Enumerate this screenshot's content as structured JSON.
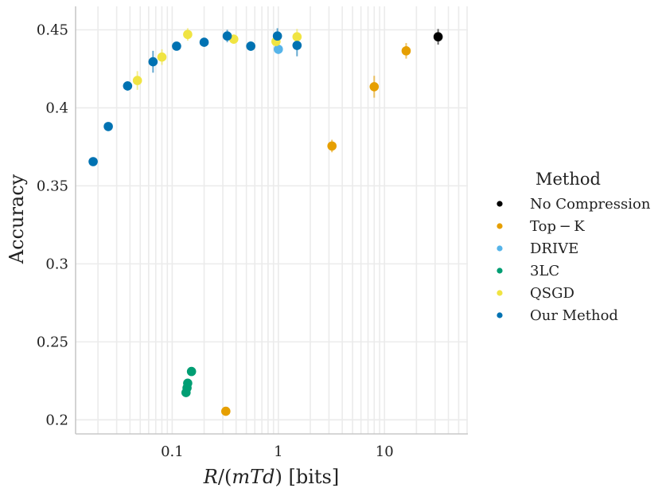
{
  "chart_data": {
    "type": "scatter",
    "title": "",
    "xlabel": "R/(mTd) [bits]",
    "ylabel": "Accuracy",
    "xscale": "log",
    "xlim": [
      0.0123,
      61
    ],
    "ylim": [
      0.191,
      0.465
    ],
    "x_ticks": [
      0.1,
      1,
      10
    ],
    "x_tick_labels": [
      "0.1",
      "1",
      "10"
    ],
    "y_ticks": [
      0.2,
      0.25,
      0.3,
      0.35,
      0.4,
      0.45
    ],
    "y_tick_labels": [
      "0.2",
      "0.25",
      "0.3",
      "0.35",
      "0.4",
      "0.45"
    ],
    "grid": true,
    "legend": {
      "title": "Method",
      "placement": "right"
    },
    "series": [
      {
        "name": "No Compression",
        "color": "#000000",
        "points": [
          {
            "x": 32,
            "y": 0.4455,
            "err": 0.005
          }
        ]
      },
      {
        "name": "Top − K",
        "color": "#E69F00",
        "points": [
          {
            "x": 0.32,
            "y": 0.2055,
            "err": 0.002
          },
          {
            "x": 3.2,
            "y": 0.3755,
            "err": 0.004
          },
          {
            "x": 8,
            "y": 0.4135,
            "err": 0.007
          },
          {
            "x": 16,
            "y": 0.4365,
            "err": 0.005
          }
        ]
      },
      {
        "name": "DRIVE",
        "color": "#56B4E9",
        "points": [
          {
            "x": 1,
            "y": 0.4375,
            "err": 0.003
          }
        ]
      },
      {
        "name": "3LC",
        "color": "#009E73",
        "points": [
          {
            "x": 0.135,
            "y": 0.2175,
            "err": 0.002
          },
          {
            "x": 0.138,
            "y": 0.2205,
            "err": 0.002
          },
          {
            "x": 0.14,
            "y": 0.2235,
            "err": 0.002
          },
          {
            "x": 0.152,
            "y": 0.231,
            "err": 0.002
          }
        ]
      },
      {
        "name": "QSGD",
        "color": "#F0E442",
        "points": [
          {
            "x": 0.047,
            "y": 0.4175,
            "err": 0.006
          },
          {
            "x": 0.08,
            "y": 0.4325,
            "err": 0.005
          },
          {
            "x": 0.14,
            "y": 0.447,
            "err": 0.004
          },
          {
            "x": 0.38,
            "y": 0.444,
            "err": 0.003
          },
          {
            "x": 0.95,
            "y": 0.4425,
            "err": 0.004
          },
          {
            "x": 1.5,
            "y": 0.4455,
            "err": 0.005
          }
        ]
      },
      {
        "name": "Our Method",
        "color": "#0072B2",
        "points": [
          {
            "x": 0.018,
            "y": 0.3655,
            "err": 0.002
          },
          {
            "x": 0.025,
            "y": 0.388,
            "err": 0.002
          },
          {
            "x": 0.038,
            "y": 0.414,
            "err": 0.003
          },
          {
            "x": 0.066,
            "y": 0.4295,
            "err": 0.007
          },
          {
            "x": 0.11,
            "y": 0.4395,
            "err": 0.002
          },
          {
            "x": 0.2,
            "y": 0.442,
            "err": 0.002
          },
          {
            "x": 0.33,
            "y": 0.446,
            "err": 0.004
          },
          {
            "x": 0.55,
            "y": 0.4395,
            "err": 0.003
          },
          {
            "x": 0.98,
            "y": 0.446,
            "err": 0.005
          },
          {
            "x": 1.5,
            "y": 0.44,
            "err": 0.007
          }
        ]
      }
    ]
  }
}
